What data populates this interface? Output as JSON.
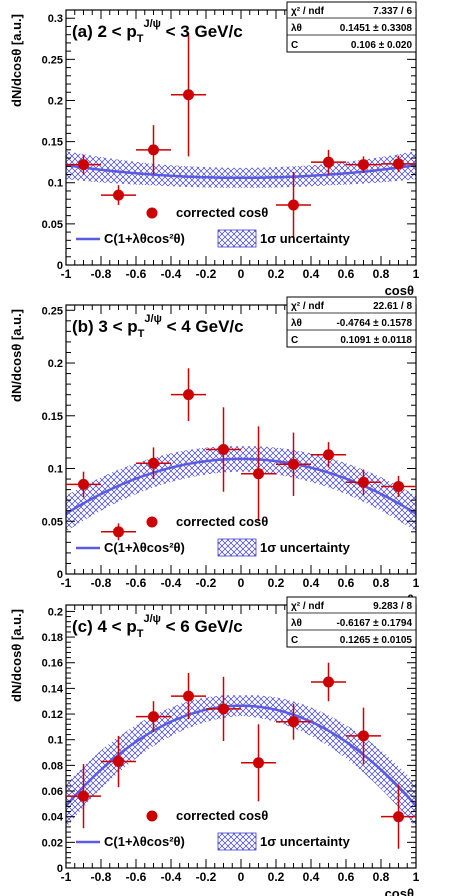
{
  "figure": {
    "ylabel": "dN/dcosθ [a.u.]",
    "xlabel": "cosθ",
    "legend_marker_label": "corrected cosθ",
    "legend_line_label": "C(1+λθcos²θ)",
    "legend_band_label": "1σ uncertainty",
    "stats_labels": {
      "chi2": "χ² / ndf",
      "lambda": "λθ",
      "c": "C"
    },
    "colors": {
      "marker": "#cc0000",
      "fit": "#5a5ae6",
      "band": "#3d3dd9",
      "frame": "#000000"
    }
  },
  "chart_data": [
    {
      "type": "scatter",
      "panel_label": "(a) 2 < pT^J/ψ < 3 GeV/c",
      "xlim": [
        -1,
        1
      ],
      "ylim": [
        0,
        0.31
      ],
      "yticks": [
        0,
        0.05,
        0.1,
        0.15,
        0.2,
        0.25,
        0.3
      ],
      "ytick_labels": [
        "0",
        "0.05",
        "0.1",
        "0.15",
        "0.2",
        "0.25",
        "0.3"
      ],
      "xticks": [
        -1,
        -0.8,
        -0.6,
        -0.4,
        -0.2,
        0,
        0.2,
        0.4,
        0.6,
        0.8,
        1
      ],
      "xtick_labels": [
        "-1",
        "-0.8",
        "-0.6",
        "-0.4",
        "-0.2",
        "0",
        "0.2",
        "0.4",
        "0.6",
        "0.8",
        "1"
      ],
      "stats": {
        "chi2": "7.337 / 6",
        "lambda": "0.1451 ± 0.3308",
        "c": "0.106 ± 0.020"
      },
      "fit": {
        "C": 0.106,
        "lambda": 0.1451,
        "band_half_width": [
          0.017,
          0.013,
          0.012,
          0.013,
          0.017
        ]
      },
      "series": [
        {
          "name": "corrected cosθ",
          "x": [
            -0.9,
            -0.7,
            -0.5,
            -0.3,
            0.3,
            0.5,
            0.7,
            0.9
          ],
          "y": [
            0.122,
            0.085,
            0.14,
            0.207,
            0.073,
            0.125,
            0.122,
            0.123
          ],
          "xerr": [
            0.1,
            0.1,
            0.1,
            0.1,
            0.1,
            0.1,
            0.1,
            0.1
          ],
          "yerr": [
            0.012,
            0.012,
            0.03,
            0.075,
            0.04,
            0.015,
            0.01,
            0.01
          ]
        }
      ]
    },
    {
      "type": "scatter",
      "panel_label": "(b) 3 < pT^J/ψ < 4 GeV/c",
      "xlim": [
        -1,
        1
      ],
      "ylim": [
        0,
        0.255
      ],
      "yticks": [
        0,
        0.05,
        0.1,
        0.15,
        0.2,
        0.25
      ],
      "ytick_labels": [
        "0",
        "0.05",
        "0.1",
        "0.15",
        "0.2",
        "0.25"
      ],
      "xticks": [
        -1,
        -0.8,
        -0.6,
        -0.4,
        -0.2,
        0,
        0.2,
        0.4,
        0.6,
        0.8,
        1
      ],
      "xtick_labels": [
        "-1",
        "-0.8",
        "-0.6",
        "-0.4",
        "-0.2",
        "0",
        "0.2",
        "0.4",
        "0.6",
        "0.8",
        "1"
      ],
      "stats": {
        "chi2": "22.61 / 8",
        "lambda": "-0.4764 ± 0.1578",
        "c": "0.1091 ± 0.0118"
      },
      "fit": {
        "C": 0.1091,
        "lambda": -0.4764,
        "band_half_width": [
          0.017,
          0.014,
          0.012,
          0.014,
          0.017
        ]
      },
      "series": [
        {
          "name": "corrected cosθ",
          "x": [
            -0.9,
            -0.7,
            -0.5,
            -0.3,
            -0.1,
            0.1,
            0.3,
            0.5,
            0.7,
            0.9
          ],
          "y": [
            0.085,
            0.04,
            0.105,
            0.17,
            0.118,
            0.095,
            0.104,
            0.113,
            0.087,
            0.083
          ],
          "xerr": [
            0.1,
            0.1,
            0.1,
            0.1,
            0.1,
            0.1,
            0.1,
            0.1,
            0.1,
            0.1
          ],
          "yerr": [
            0.012,
            0.008,
            0.015,
            0.025,
            0.04,
            0.045,
            0.03,
            0.012,
            0.012,
            0.01
          ]
        }
      ]
    },
    {
      "type": "scatter",
      "panel_label": "(c) 4 < pT^J/ψ < 6 GeV/c",
      "xlim": [
        -1,
        1
      ],
      "ylim": [
        0,
        0.205
      ],
      "yticks": [
        0,
        0.02,
        0.04,
        0.06,
        0.08,
        0.1,
        0.12,
        0.14,
        0.16,
        0.18,
        0.2
      ],
      "ytick_labels": [
        "0",
        "0.02",
        "0.04",
        "0.06",
        "0.08",
        "0.1",
        "0.12",
        "0.14",
        "0.16",
        "0.18",
        "0.2"
      ],
      "xticks": [
        -1,
        -0.8,
        -0.6,
        -0.4,
        -0.2,
        0,
        0.2,
        0.4,
        0.6,
        0.8,
        1
      ],
      "xtick_labels": [
        "-1",
        "-0.8",
        "-0.6",
        "-0.4",
        "-0.2",
        "0",
        "0.2",
        "0.4",
        "0.6",
        "0.8",
        "1"
      ],
      "stats": {
        "chi2": "9.283 / 8",
        "lambda": "-0.6167 ± 0.1794",
        "c": "0.1265 ± 0.0105"
      },
      "fit": {
        "C": 0.1265,
        "lambda": -0.6167,
        "band_half_width": [
          0.017,
          0.012,
          0.008,
          0.012,
          0.017
        ]
      },
      "series": [
        {
          "name": "corrected cosθ",
          "x": [
            -0.9,
            -0.7,
            -0.5,
            -0.3,
            -0.1,
            0.1,
            0.3,
            0.5,
            0.7,
            0.9
          ],
          "y": [
            0.056,
            0.083,
            0.118,
            0.134,
            0.124,
            0.082,
            0.114,
            0.145,
            0.103,
            0.04
          ],
          "xerr": [
            0.1,
            0.1,
            0.1,
            0.1,
            0.1,
            0.1,
            0.1,
            0.1,
            0.1,
            0.1
          ],
          "yerr": [
            0.025,
            0.02,
            0.012,
            0.018,
            0.025,
            0.03,
            0.014,
            0.015,
            0.022,
            0.025
          ]
        }
      ]
    }
  ]
}
